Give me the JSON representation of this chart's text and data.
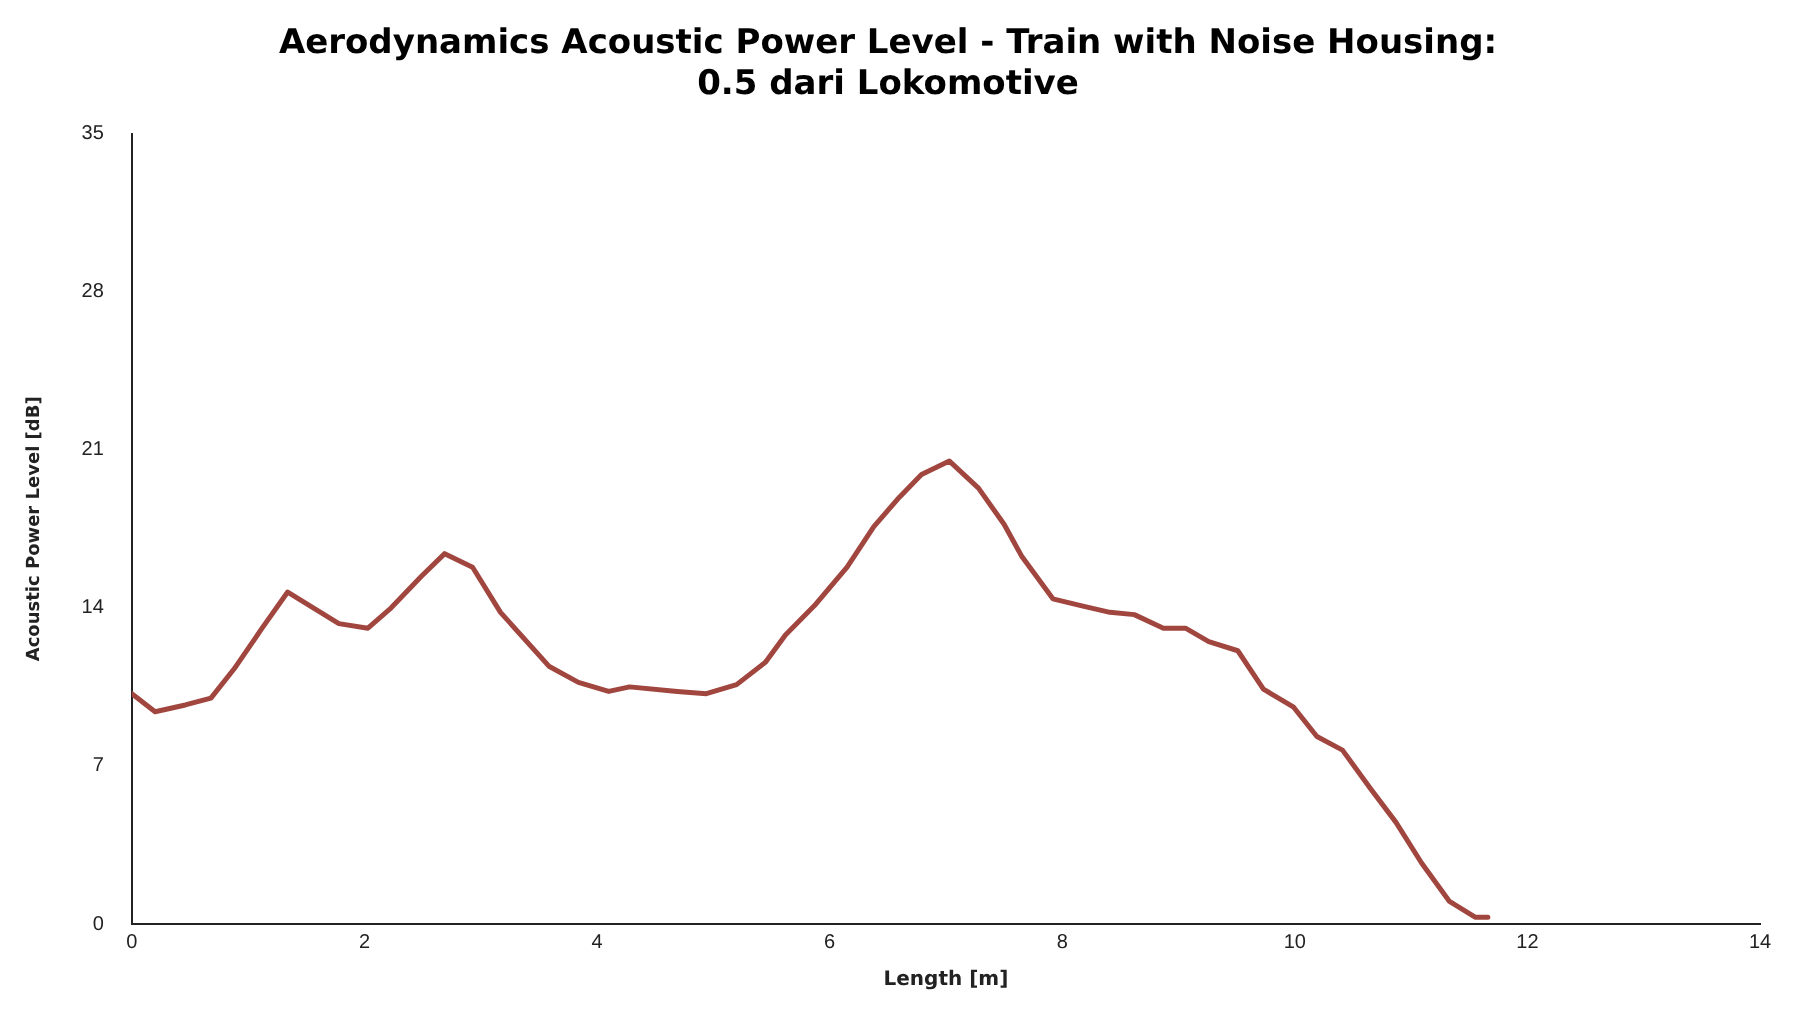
{
  "chart_data": {
    "type": "line",
    "title": "Aerodynamics Acoustic Power Level - Train with Noise Housing:\n0.5 dari Lokomotive",
    "xlabel": "Length [m]",
    "ylabel": "Acoustic Power Level [dB]",
    "xlim": [
      0,
      14
    ],
    "xticks": [
      0,
      2,
      4,
      6,
      8,
      10,
      12,
      14
    ],
    "ylim": [
      0,
      35
    ],
    "yticks": [
      0,
      7,
      14,
      21,
      28,
      35
    ],
    "grid": false,
    "legend": false,
    "marker": "none",
    "line_style": "solid",
    "series": [
      {
        "color": "#a0463f",
        "x": [
          0,
          0.2,
          0.46,
          0.68,
          0.88,
          1.12,
          1.34,
          1.78,
          2.03,
          2.23,
          2.49,
          2.69,
          2.93,
          3.17,
          3.59,
          3.84,
          4.1,
          4.28,
          4.69,
          4.94,
          5.2,
          5.45,
          5.62,
          5.87,
          6.15,
          6.38,
          6.6,
          6.79,
          7.03,
          7.28,
          7.5,
          7.65,
          7.92,
          8.16,
          8.41,
          8.62,
          8.87,
          9.06,
          9.26,
          9.51,
          9.73,
          9.99,
          10.19,
          10.41,
          10.65,
          10.87,
          11.09,
          11.33,
          11.55,
          11.66
        ],
        "values": [
          10.2,
          9.4,
          9.7,
          10,
          11.3,
          13.1,
          14.7,
          13.3,
          13.1,
          14,
          15.4,
          16.4,
          15.8,
          13.8,
          11.4,
          10.7,
          10.3,
          10.5,
          10.3,
          10.2,
          10.6,
          11.6,
          12.8,
          14.1,
          15.8,
          17.6,
          18.9,
          19.9,
          20.5,
          19.3,
          17.7,
          16.3,
          14.4,
          14.1,
          13.8,
          13.7,
          13.1,
          13.1,
          12.5,
          12.1,
          10.4,
          9.6,
          8.3,
          7.7,
          6,
          4.5,
          2.7,
          1,
          0.3,
          0.3
        ]
      }
    ]
  }
}
